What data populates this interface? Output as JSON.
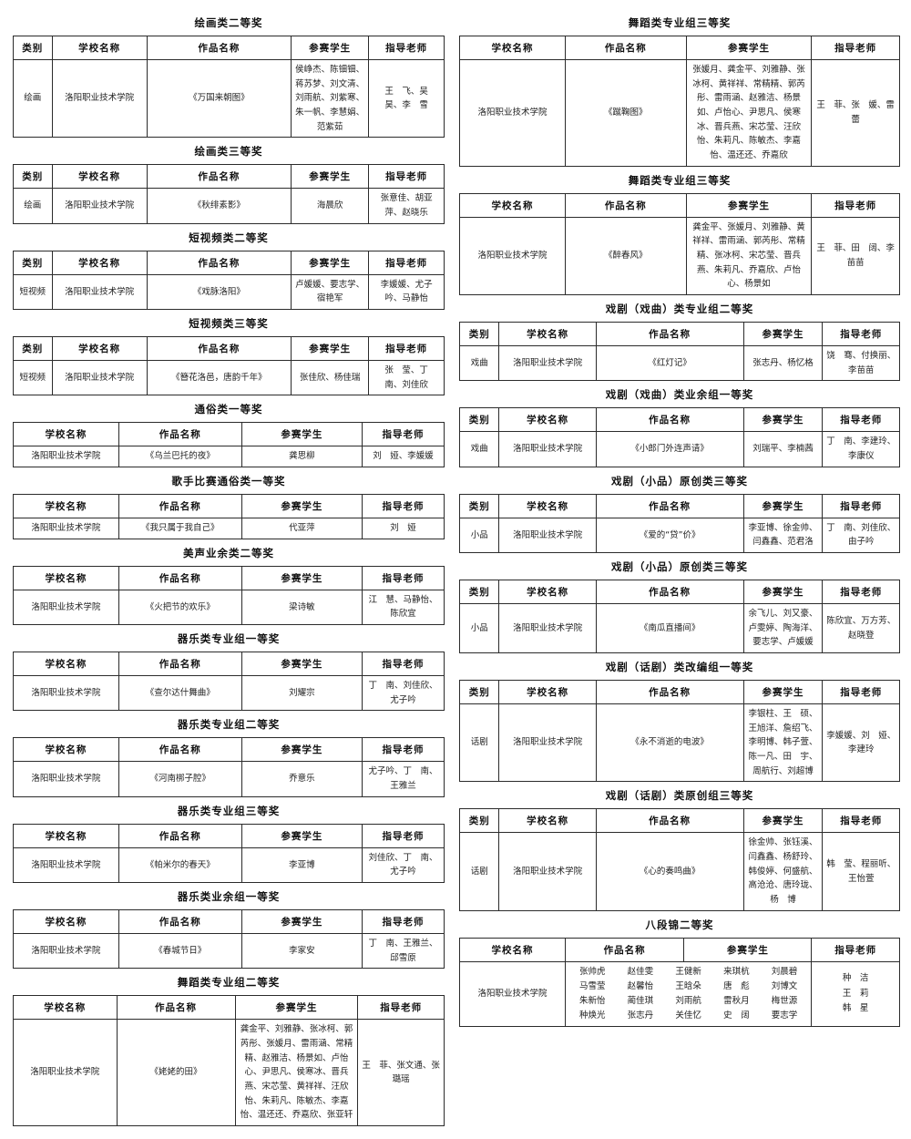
{
  "page": {
    "background": "#ffffff",
    "border_color": "#2b2b2b",
    "school_common": "洛阳职业技术学院"
  },
  "columns": [
    {
      "side": "left",
      "sections": [
        {
          "title": "绘画类二等奖",
          "variant": "v5",
          "columns": [
            "类别",
            "学校名称",
            "作品名称",
            "参赛学生",
            "指导老师"
          ],
          "rows": [
            [
              "绘画",
              "洛阳职业技术学院",
              "《万国来朝图》",
              "侯峥杰、陈钿钿、蒋苏梦、刘文清、刘雨航、刘紫寒、朱一帆、李慧娟、范紫茹",
              "王　飞、吴　昊、李　雪"
            ]
          ]
        },
        {
          "title": "绘画类三等奖",
          "variant": "v5",
          "columns": [
            "类别",
            "学校名称",
            "作品名称",
            "参赛学生",
            "指导老师"
          ],
          "rows": [
            [
              "绘画",
              "洛阳职业技术学院",
              "《秋绯素影》",
              "海晨欣",
              "张意佳、胡亚萍、赵晓乐"
            ]
          ]
        },
        {
          "title": "短视频类二等奖",
          "variant": "v5",
          "columns": [
            "类别",
            "学校名称",
            "作品名称",
            "参赛学生",
            "指导老师"
          ],
          "rows": [
            [
              "短视频",
              "洛阳职业技术学院",
              "《戏脉洛阳》",
              "卢媛媛、要志学、宿艳军",
              "李媛媛、尤子吟、马静怡"
            ]
          ]
        },
        {
          "title": "短视频类三等奖",
          "variant": "v5",
          "columns": [
            "类别",
            "学校名称",
            "作品名称",
            "参赛学生",
            "指导老师"
          ],
          "rows": [
            [
              "短视频",
              "洛阳职业技术学院",
              "《簪花洛邑，唐韵千年》",
              "张佳欣、杨佳瑞",
              "张　莹、丁　南、刘佳欣"
            ]
          ]
        },
        {
          "title": "通俗类一等奖",
          "variant": "v4",
          "columns": [
            "学校名称",
            "作品名称",
            "参赛学生",
            "指导老师"
          ],
          "rows": [
            [
              "洛阳职业技术学院",
              "《乌兰巴托的夜》",
              "龚思柳",
              "刘　娅、李媛媛"
            ]
          ]
        },
        {
          "title": "歌手比赛通俗类一等奖",
          "variant": "v4",
          "columns": [
            "学校名称",
            "作品名称",
            "参赛学生",
            "指导老师"
          ],
          "rows": [
            [
              "洛阳职业技术学院",
              "《我只属于我自己》",
              "代亚萍",
              "刘　娅"
            ]
          ]
        },
        {
          "title": "美声业余类二等奖",
          "variant": "v4",
          "columns": [
            "学校名称",
            "作品名称",
            "参赛学生",
            "指导老师"
          ],
          "rows": [
            [
              "洛阳职业技术学院",
              "《火把节的欢乐》",
              "梁诗敏",
              "江　慧、马静怡、陈欣宜"
            ]
          ]
        },
        {
          "title": "器乐类专业组一等奖",
          "variant": "v4",
          "columns": [
            "学校名称",
            "作品名称",
            "参赛学生",
            "指导老师"
          ],
          "rows": [
            [
              "洛阳职业技术学院",
              "《查尔达什舞曲》",
              "刘耀宗",
              "丁　南、刘佳欣、尤子吟"
            ]
          ]
        },
        {
          "title": "器乐类专业组二等奖",
          "variant": "v4",
          "columns": [
            "学校名称",
            "作品名称",
            "参赛学生",
            "指导老师"
          ],
          "rows": [
            [
              "洛阳职业技术学院",
              "《河南梆子腔》",
              "乔意乐",
              "尤子吟、丁　南、王雅兰"
            ]
          ]
        },
        {
          "title": "器乐类专业组三等奖",
          "variant": "v4",
          "columns": [
            "学校名称",
            "作品名称",
            "参赛学生",
            "指导老师"
          ],
          "rows": [
            [
              "洛阳职业技术学院",
              "《帕米尔的春天》",
              "李亚博",
              "刘佳欣、丁　南、尤子吟"
            ]
          ]
        },
        {
          "title": "器乐类业余组一等奖",
          "variant": "v4",
          "columns": [
            "学校名称",
            "作品名称",
            "参赛学生",
            "指导老师"
          ],
          "rows": [
            [
              "洛阳职业技术学院",
              "《春城节日》",
              "李家安",
              "丁　南、王雅兰、邱雪原"
            ]
          ]
        },
        {
          "title": "舞蹈类专业组二等奖",
          "variant": "v4d",
          "columns": [
            "学校名称",
            "作品名称",
            "参赛学生",
            "指导老师"
          ],
          "rows": [
            [
              "洛阳职业技术学院",
              "《姥姥的田》",
              "龚金平、刘雅静、张冰柯、郭芮彤、张媛月、雷雨涵、常精精、赵雅洁、杨景如、卢怡心、尹思凡、侯寒冰、晋兵燕、宋芯莹、黄祥祥、汪欣怡、朱莉凡、陈敏杰、李嘉怡、温还还、乔嘉欣、张亚轩",
              "王　菲、张文通、张璐瑶"
            ]
          ]
        }
      ]
    },
    {
      "side": "right",
      "sections": [
        {
          "title": "舞蹈类专业组三等奖",
          "variant": "v4d",
          "columns": [
            "学校名称",
            "作品名称",
            "参赛学生",
            "指导老师"
          ],
          "rows": [
            [
              "洛阳职业技术学院",
              "《蹴鞠图》",
              "张媛月、龚金平、刘雅静、张冰柯、黄祥祥、常精精、郭芮彤、雷雨涵、赵雅洁、杨景如、卢怡心、尹思凡、侯寒冰、晋兵燕、宋芯莹、汪欣怡、朱莉凡、陈敏杰、李嘉怡、温还还、乔嘉欣",
              "王　菲、张　媛、雷　蕾"
            ]
          ]
        },
        {
          "title": "舞蹈类专业组三等奖",
          "variant": "v4d",
          "columns": [
            "学校名称",
            "作品名称",
            "参赛学生",
            "指导老师"
          ],
          "rows": [
            [
              "洛阳职业技术学院",
              "《醉春风》",
              "龚金平、张媛月、刘雅静、黄祥祥、雷雨涵、郭芮彤、常精精、张冰柯、宋芯莹、晋兵燕、朱莉凡、乔嘉欣、卢怡心、杨景如",
              "王　菲、田　阔、李苗苗"
            ]
          ]
        },
        {
          "title": "戏剧（戏曲）类专业组二等奖",
          "variant": "v5",
          "columns": [
            "类别",
            "学校名称",
            "作品名称",
            "参赛学生",
            "指导老师"
          ],
          "rows": [
            [
              "戏曲",
              "洛阳职业技术学院",
              "《红灯记》",
              "张志丹、杨忆格",
              "饶　骞、付换丽、李苗苗"
            ]
          ]
        },
        {
          "title": "戏剧（戏曲）类业余组一等奖",
          "variant": "v5",
          "columns": [
            "类别",
            "学校名称",
            "作品名称",
            "参赛学生",
            "指导老师"
          ],
          "rows": [
            [
              "戏曲",
              "洛阳职业技术学院",
              "《小郎门外连声请》",
              "刘瑞平、李楠茜",
              "丁　南、李建玲、李康仪"
            ]
          ]
        },
        {
          "title": "戏剧（小品）原创类三等奖",
          "variant": "v5",
          "columns": [
            "类别",
            "学校名称",
            "作品名称",
            "参赛学生",
            "指导老师"
          ],
          "rows": [
            [
              "小品",
              "洛阳职业技术学院",
              "《爱的“贷”价》",
              "李亚博、徐金帅、闫鑫鑫、范君洛",
              "丁　南、刘佳欣、由子吟"
            ]
          ]
        },
        {
          "title": "戏剧（小品）原创类三等奖",
          "variant": "v5",
          "columns": [
            "类别",
            "学校名称",
            "作品名称",
            "参赛学生",
            "指导老师"
          ],
          "rows": [
            [
              "小品",
              "洛阳职业技术学院",
              "《南瓜直播间》",
              "余飞儿、刘又豪、卢雯婷、陶海洋、要志学、卢媛媛",
              "陈欣宜、万方芳、赵晓登"
            ]
          ]
        },
        {
          "title": "戏剧（话剧）类改编组一等奖",
          "variant": "v5",
          "columns": [
            "类别",
            "学校名称",
            "作品名称",
            "参赛学生",
            "指导老师"
          ],
          "rows": [
            [
              "话剧",
              "洛阳职业技术学院",
              "《永不消逝的电波》",
              "李银柱、王　硕、王旭洋、詹绍飞、李明博、韩子萱、陈一凡、田　宇、周航行、刘超博",
              "李媛媛、刘　娅、李建玲"
            ]
          ]
        },
        {
          "title": "戏剧（话剧）类原创组三等奖",
          "variant": "v5",
          "columns": [
            "类别",
            "学校名称",
            "作品名称",
            "参赛学生",
            "指导老师"
          ],
          "rows": [
            [
              "话剧",
              "洛阳职业技术学院",
              "《心的奏鸣曲》",
              "徐金帅、张钰溪、闫鑫鑫、杨舒玲、韩俊婷、何盛航、高沧沧、唐玲珑、杨　博",
              "韩　莹、程丽听、王怡萱"
            ]
          ]
        },
        {
          "title": "八段锦二等奖",
          "variant": "grid",
          "columns": [
            "学校名称",
            "作品名称",
            "参赛学生",
            "指导老师"
          ],
          "school": "洛阳职业技术学院",
          "name_grid": [
            [
              "张帅虎",
              "赵佳雯",
              "王健新",
              "来琪杭",
              "刘晨碧"
            ],
            [
              "马雪莹",
              "赵馨怡",
              "王晗朵",
              "唐　彪",
              "刘博文"
            ],
            [
              "朱新怡",
              "蔺佳琪",
              "刘雨航",
              "雷秋月",
              "梅世源"
            ],
            [
              "种焕光",
              "张志丹",
              "关佳忆",
              "史　阔",
              "要志学"
            ]
          ],
          "teachers": [
            "种　洁",
            "王　莉",
            "韩　星"
          ]
        }
      ]
    }
  ]
}
